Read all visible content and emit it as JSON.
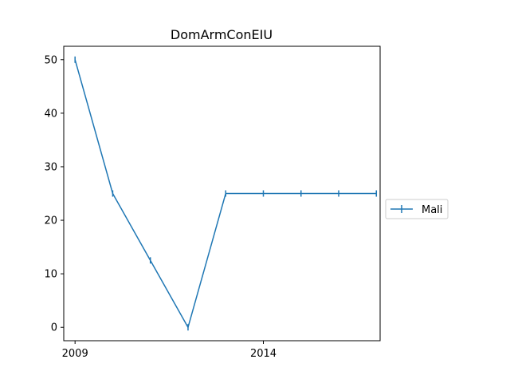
{
  "chart_data": {
    "type": "line",
    "title": "DomArmConEIU",
    "xlabel": "",
    "ylabel": "",
    "x": [
      2009,
      2010,
      2011,
      2012,
      2013,
      2014,
      2015,
      2016,
      2017
    ],
    "series": [
      {
        "name": "Mali",
        "values": [
          50,
          25,
          12.5,
          0,
          25,
          25,
          25,
          25,
          25
        ]
      }
    ],
    "xlim": [
      2008.7,
      2017.1
    ],
    "ylim": [
      -2.5,
      52.5
    ],
    "xticks": [
      2009,
      2014
    ],
    "xtick_labels": [
      "2009",
      "2014"
    ],
    "yticks": [
      0,
      10,
      20,
      30,
      40,
      50
    ],
    "ytick_labels": [
      "0",
      "10",
      "20",
      "30",
      "40",
      "50"
    ],
    "grid": false,
    "legend_position": "right",
    "colors": {
      "series": "#1f77b4"
    }
  }
}
